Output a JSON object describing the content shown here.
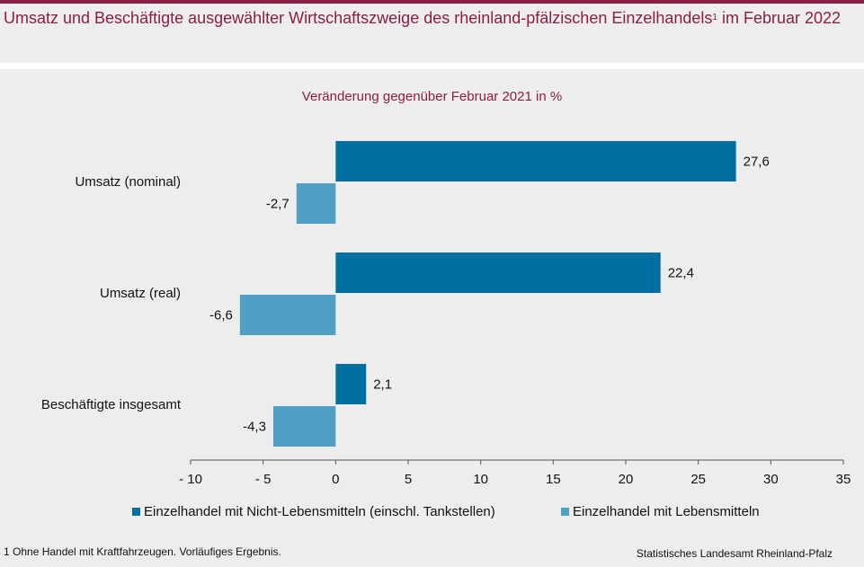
{
  "header": {
    "title_main": "Umsatz und Beschäftigte ausgewählter Wirtschaftszweige des rheinland-pfälzischen Einzelhandels",
    "title_sup": "1",
    "title_tail": " im Februar 2022"
  },
  "chart_data": {
    "type": "bar",
    "orientation": "horizontal",
    "subtitle": "Veränderung gegenüber Februar 2021 in %",
    "categories": [
      "Umsatz (nominal)",
      "Umsatz (real)",
      "Beschäftigte insgesamt"
    ],
    "series": [
      {
        "name": "Einzelhandel mit Nicht-Lebensmitteln (einschl. Tankstellen)",
        "values": [
          27.6,
          22.4,
          2.1
        ],
        "labels": [
          "27,6",
          "22,4",
          "2,1"
        ],
        "color": "#0070a0"
      },
      {
        "name": "Einzelhandel mit Lebensmitteln",
        "values": [
          -2.7,
          -6.6,
          -4.3
        ],
        "labels": [
          "-2,7",
          "-6,6",
          "-4,3"
        ],
        "color": "#4fa0c4"
      }
    ],
    "xlim": [
      -10,
      35
    ],
    "xticks": [
      -10,
      -5,
      0,
      5,
      10,
      15,
      20,
      25,
      30,
      35
    ],
    "xtick_labels": [
      "- 10",
      "- 5",
      "0",
      "5",
      "10",
      "15",
      "20",
      "25",
      "30",
      "35"
    ],
    "grid": false,
    "legend_position": "bottom"
  },
  "footer": {
    "footnote": "1 Ohne Handel mit Kraftfahrzeugen. Vorläufiges Ergebnis.",
    "source": "Statistisches Landesamt Rheinland-Pfalz"
  }
}
